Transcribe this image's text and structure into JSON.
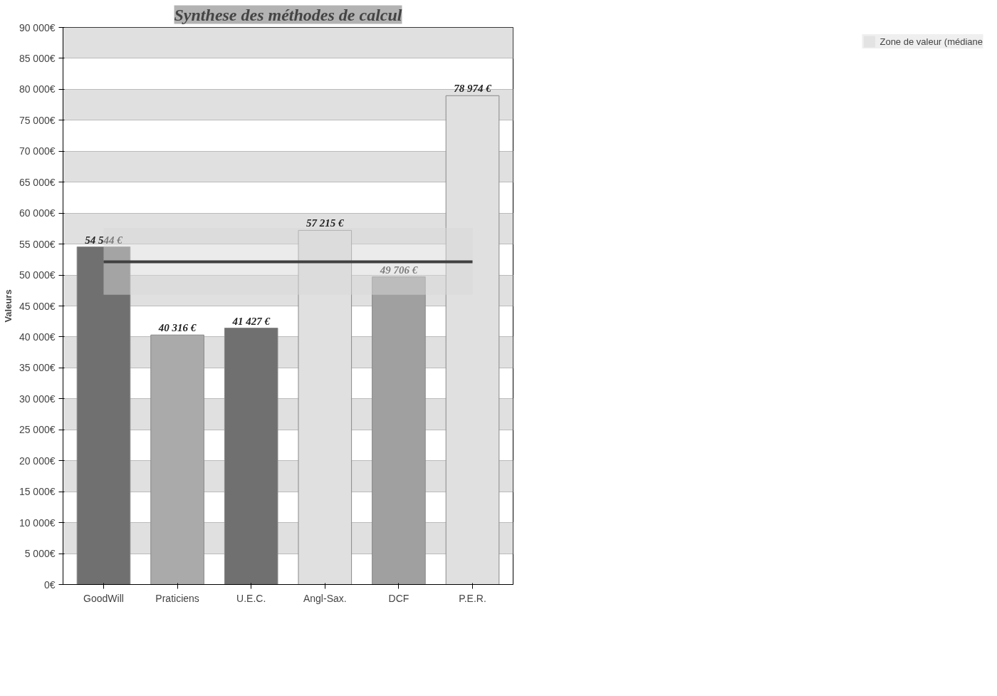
{
  "chart_data": {
    "type": "bar",
    "title": "Synthese des méthodes de calcul",
    "ylabel": "Valeurs",
    "categories": [
      "GoodWill",
      "Praticiens",
      "U.E.C.",
      "Angl-Sax.",
      "DCF",
      "P.E.R."
    ],
    "values": [
      54544,
      40316,
      41427,
      57215,
      49706,
      78974
    ],
    "colors": [
      "#707070",
      "#aaaaaa",
      "#707070",
      "#e0e0e0",
      "#a0a0a0",
      "#e0e0e0"
    ],
    "value_labels": [
      "54 544 €",
      "40 316 €",
      "41 427 €",
      "57 215 €",
      "49 706 €",
      "78 974 €"
    ],
    "ylim": [
      0,
      90000
    ],
    "yticks": [
      {
        "value": 0,
        "label": "0€"
      },
      {
        "value": 5000,
        "label": "5 000€"
      },
      {
        "value": 10000,
        "label": "10 000€"
      },
      {
        "value": 15000,
        "label": "15 000€"
      },
      {
        "value": 20000,
        "label": "20 000€"
      },
      {
        "value": 25000,
        "label": "25 000€"
      },
      {
        "value": 30000,
        "label": "30 000€"
      },
      {
        "value": 35000,
        "label": "35 000€"
      },
      {
        "value": 40000,
        "label": "40 000€"
      },
      {
        "value": 45000,
        "label": "45 000€"
      },
      {
        "value": 50000,
        "label": "50 000€"
      },
      {
        "value": 55000,
        "label": "55 000€"
      },
      {
        "value": 60000,
        "label": "60 000€"
      },
      {
        "value": 65000,
        "label": "65 000€"
      },
      {
        "value": 70000,
        "label": "70 000€"
      },
      {
        "value": 75000,
        "label": "75 000€"
      },
      {
        "value": 80000,
        "label": "80 000€"
      },
      {
        "value": 85000,
        "label": "85 000€"
      },
      {
        "value": 90000,
        "label": "90 000€"
      }
    ],
    "grid": "y",
    "legend": "right",
    "ref_lines": [
      {
        "axis": "y",
        "value": 52125,
        "color": "#404040"
      }
    ],
    "bands": [
      {
        "axis": "y",
        "from": 46800,
        "to": 57600,
        "label": "Zone de valeur (médiane",
        "color": "#d8d8d8"
      }
    ]
  }
}
